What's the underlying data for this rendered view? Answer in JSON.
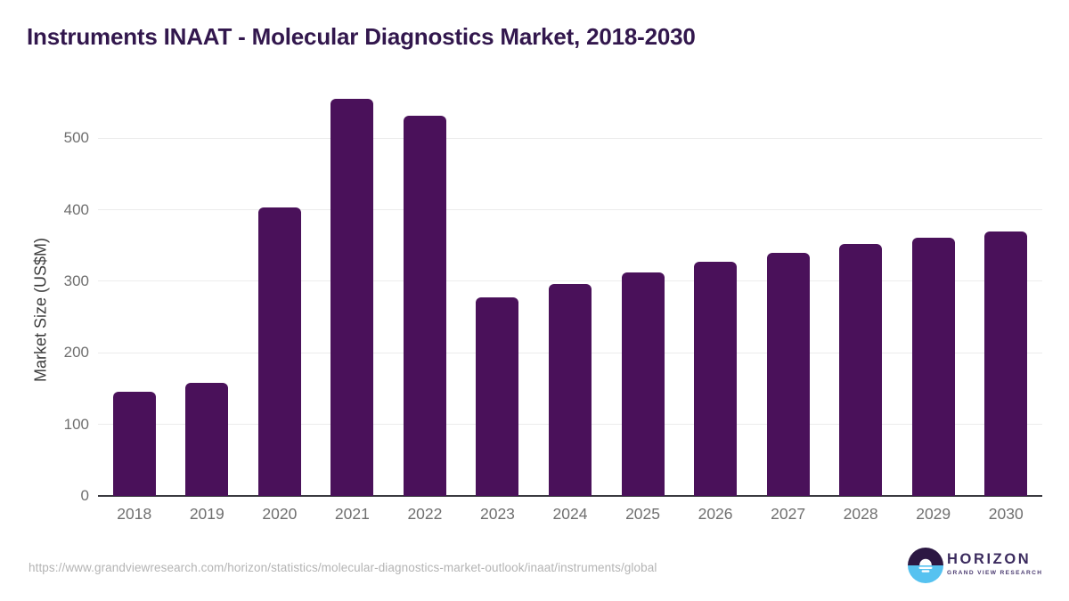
{
  "chart_data": {
    "type": "bar",
    "title": "Instruments INAAT - Molecular Diagnostics Market, 2018-2030",
    "categories": [
      "2018",
      "2019",
      "2020",
      "2021",
      "2022",
      "2023",
      "2024",
      "2025",
      "2026",
      "2027",
      "2028",
      "2029",
      "2030"
    ],
    "values": [
      145,
      158,
      403,
      555,
      531,
      277,
      296,
      312,
      327,
      340,
      352,
      361,
      370
    ],
    "xlabel": "",
    "ylabel": "Market Size (US$M)",
    "ylim": [
      0,
      560
    ],
    "yticks": [
      0,
      100,
      200,
      300,
      400,
      500
    ],
    "grid": true,
    "legend": false,
    "bar_color": "#4a115a"
  },
  "colors": {
    "title": "#32174d",
    "bar": "#4a115a",
    "axis_title": "#3d3d3d",
    "tick_label": "#6f6f6f",
    "gridline": "#ececec",
    "baseline": "#3a3a40",
    "url_text": "#b4b4b4",
    "logo_dark_purple": "#2c1843",
    "logo_light_blue": "#56c2f0"
  },
  "footer": {
    "source_url": "https://www.grandviewresearch.com/horizon/statistics/molecular-diagnostics-market-outlook/inaat/instruments/global",
    "logo": {
      "icon": "horizon-sun-over-water-icon",
      "name": "HORIZON",
      "subtitle": "GRAND VIEW RESEARCH"
    }
  }
}
